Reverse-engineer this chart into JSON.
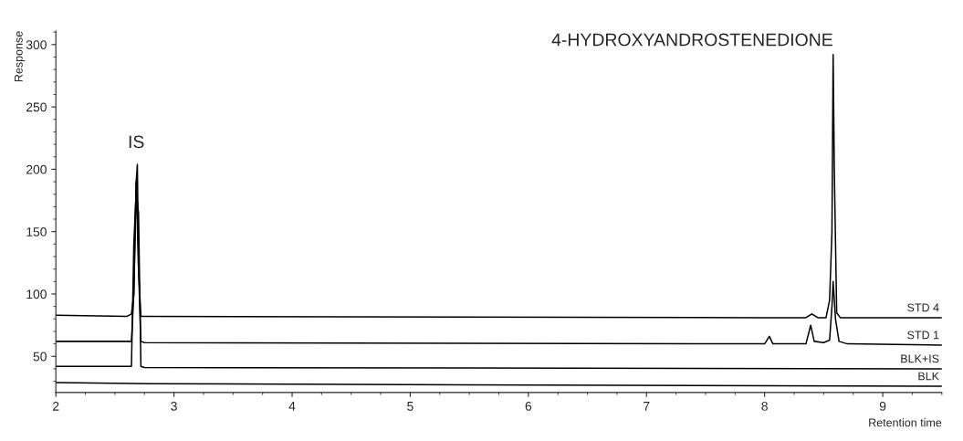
{
  "chart_data": {
    "type": "line",
    "xlabel": "Retention time",
    "ylabel": "Response",
    "xlim": [
      2,
      9.5
    ],
    "xticks": [
      2,
      3,
      4,
      5,
      6,
      7,
      8,
      9
    ],
    "ylim": [
      21,
      311
    ],
    "yticks": [
      50,
      100,
      150,
      200,
      250,
      300
    ],
    "grid": false,
    "legend": false,
    "marker": "none",
    "line_style": "solid",
    "annotations": [
      {
        "text": "IS",
        "x": 2.68,
        "y": 204
      },
      {
        "text": "4-HYDROXYANDROSTENEDIONE",
        "x": 8.58,
        "y": 292
      }
    ],
    "series": [
      {
        "name": "STD 4",
        "color": "#000000",
        "x": [
          2,
          2.6,
          2.64,
          2.66,
          2.68,
          2.69,
          2.7,
          2.72,
          2.75,
          8.0,
          8.35,
          8.4,
          8.45,
          8.52,
          8.55,
          8.57,
          8.58,
          8.59,
          8.61,
          8.64,
          9.5
        ],
        "values": [
          83,
          82,
          84,
          100,
          190,
          204,
          120,
          82,
          82,
          81,
          81,
          84,
          81,
          81,
          95,
          150,
          292,
          200,
          85,
          81,
          81
        ]
      },
      {
        "name": "STD 1",
        "color": "#000000",
        "x": [
          2,
          2.64,
          2.66,
          2.68,
          2.7,
          2.72,
          2.75,
          8.0,
          8.04,
          8.07,
          8.35,
          8.39,
          8.42,
          8.5,
          8.55,
          8.57,
          8.58,
          8.6,
          8.63,
          8.7,
          9.5
        ],
        "values": [
          62,
          62,
          100,
          190,
          120,
          62,
          61,
          60,
          66,
          60,
          60,
          75,
          62,
          61,
          63,
          90,
          110,
          80,
          62,
          60,
          59
        ]
      },
      {
        "name": "BLK+IS",
        "color": "#000000",
        "x": [
          2,
          2.64,
          2.66,
          2.68,
          2.7,
          2.72,
          2.75,
          9.5
        ],
        "values": [
          42,
          42,
          140,
          182,
          165,
          42,
          41,
          40
        ]
      },
      {
        "name": "BLK",
        "color": "#000000",
        "x": [
          2,
          2.8,
          9.5
        ],
        "values": [
          29,
          28,
          26
        ]
      }
    ]
  }
}
